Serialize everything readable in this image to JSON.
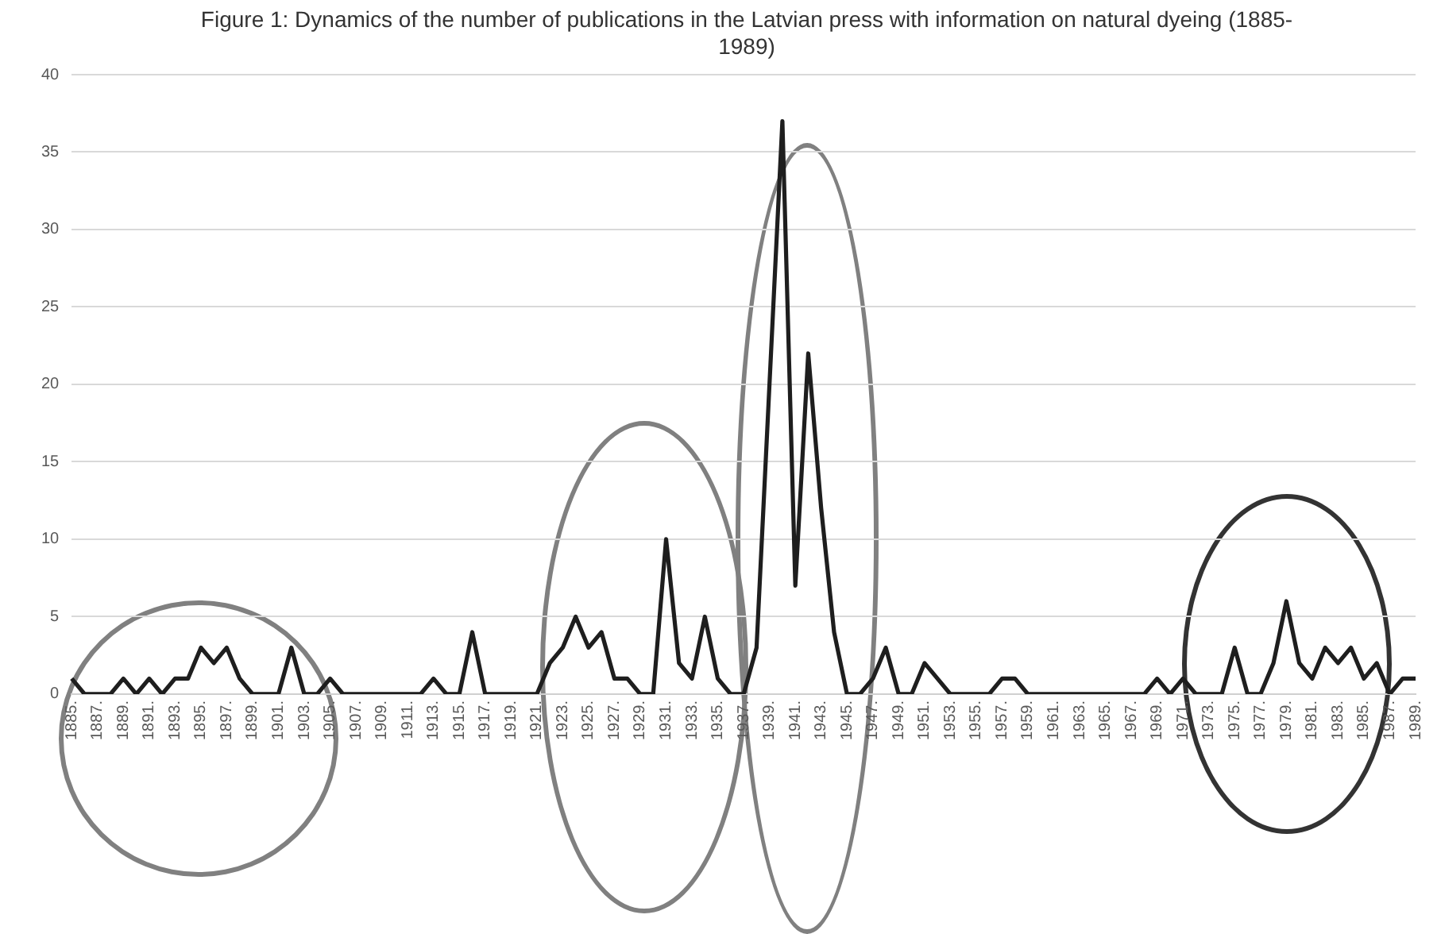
{
  "chart_data": {
    "type": "line",
    "title": "Figure 1:  Dynamics of the number of publications in the Latvian press with information on natural dyeing (1885-1989)",
    "categories": [
      "1885.",
      null,
      "1887.",
      null,
      "1889.",
      null,
      "1891.",
      null,
      "1893.",
      null,
      "1895.",
      null,
      "1897.",
      null,
      "1899.",
      null,
      "1901.",
      null,
      "1903.",
      null,
      "1905.",
      null,
      "1907.",
      null,
      "1909.",
      null,
      "1911.",
      null,
      "1913.",
      null,
      "1915.",
      null,
      "1917.",
      null,
      "1919.",
      null,
      "1921.",
      null,
      "1923.",
      null,
      "1925.",
      null,
      "1927.",
      null,
      "1929.",
      null,
      "1931.",
      null,
      "1933.",
      null,
      "1935.",
      null,
      "1937.",
      null,
      "1939.",
      null,
      "1941.",
      null,
      "1943.",
      null,
      "1945.",
      null,
      "1947.",
      null,
      "1949.",
      null,
      "1951.",
      null,
      "1953.",
      null,
      "1955.",
      null,
      "1957.",
      null,
      "1959.",
      null,
      "1961.",
      null,
      "1963.",
      null,
      "1965.",
      null,
      "1967.",
      null,
      "1969.",
      null,
      "1971.",
      null,
      "1973.",
      null,
      "1975.",
      null,
      "1977.",
      null,
      "1979.",
      null,
      "1981.",
      null,
      "1983.",
      null,
      "1985.",
      null,
      "1987.",
      null,
      "1989."
    ],
    "series": [
      {
        "color": "#1e1e1e",
        "values": [
          1,
          0,
          0,
          0,
          1,
          0,
          1,
          0,
          1,
          1,
          3,
          2,
          3,
          1,
          0,
          0,
          0,
          3,
          0,
          0,
          1,
          0,
          0,
          0,
          0,
          0,
          0,
          0,
          1,
          0,
          0,
          4,
          0,
          0,
          0,
          0,
          0,
          2,
          3,
          5,
          3,
          4,
          1,
          1,
          0,
          0,
          10,
          2,
          1,
          5,
          1,
          0,
          0,
          3,
          20,
          37,
          7,
          22,
          12,
          4,
          0,
          0,
          1,
          3,
          0,
          0,
          2,
          1,
          0,
          0,
          0,
          0,
          1,
          1,
          0,
          0,
          0,
          0,
          0,
          0,
          0,
          0,
          0,
          0,
          1,
          0,
          1,
          0,
          0,
          0,
          3,
          0,
          0,
          2,
          6,
          2,
          1,
          3,
          2,
          3,
          1,
          2,
          0,
          1,
          1
        ]
      }
    ],
    "ylim": [
      0,
      40
    ],
    "yticks": [
      0,
      5,
      10,
      15,
      20,
      25,
      30,
      35,
      40
    ],
    "grid": "y",
    "legend": false,
    "marker": "none",
    "line_style": "solid"
  }
}
